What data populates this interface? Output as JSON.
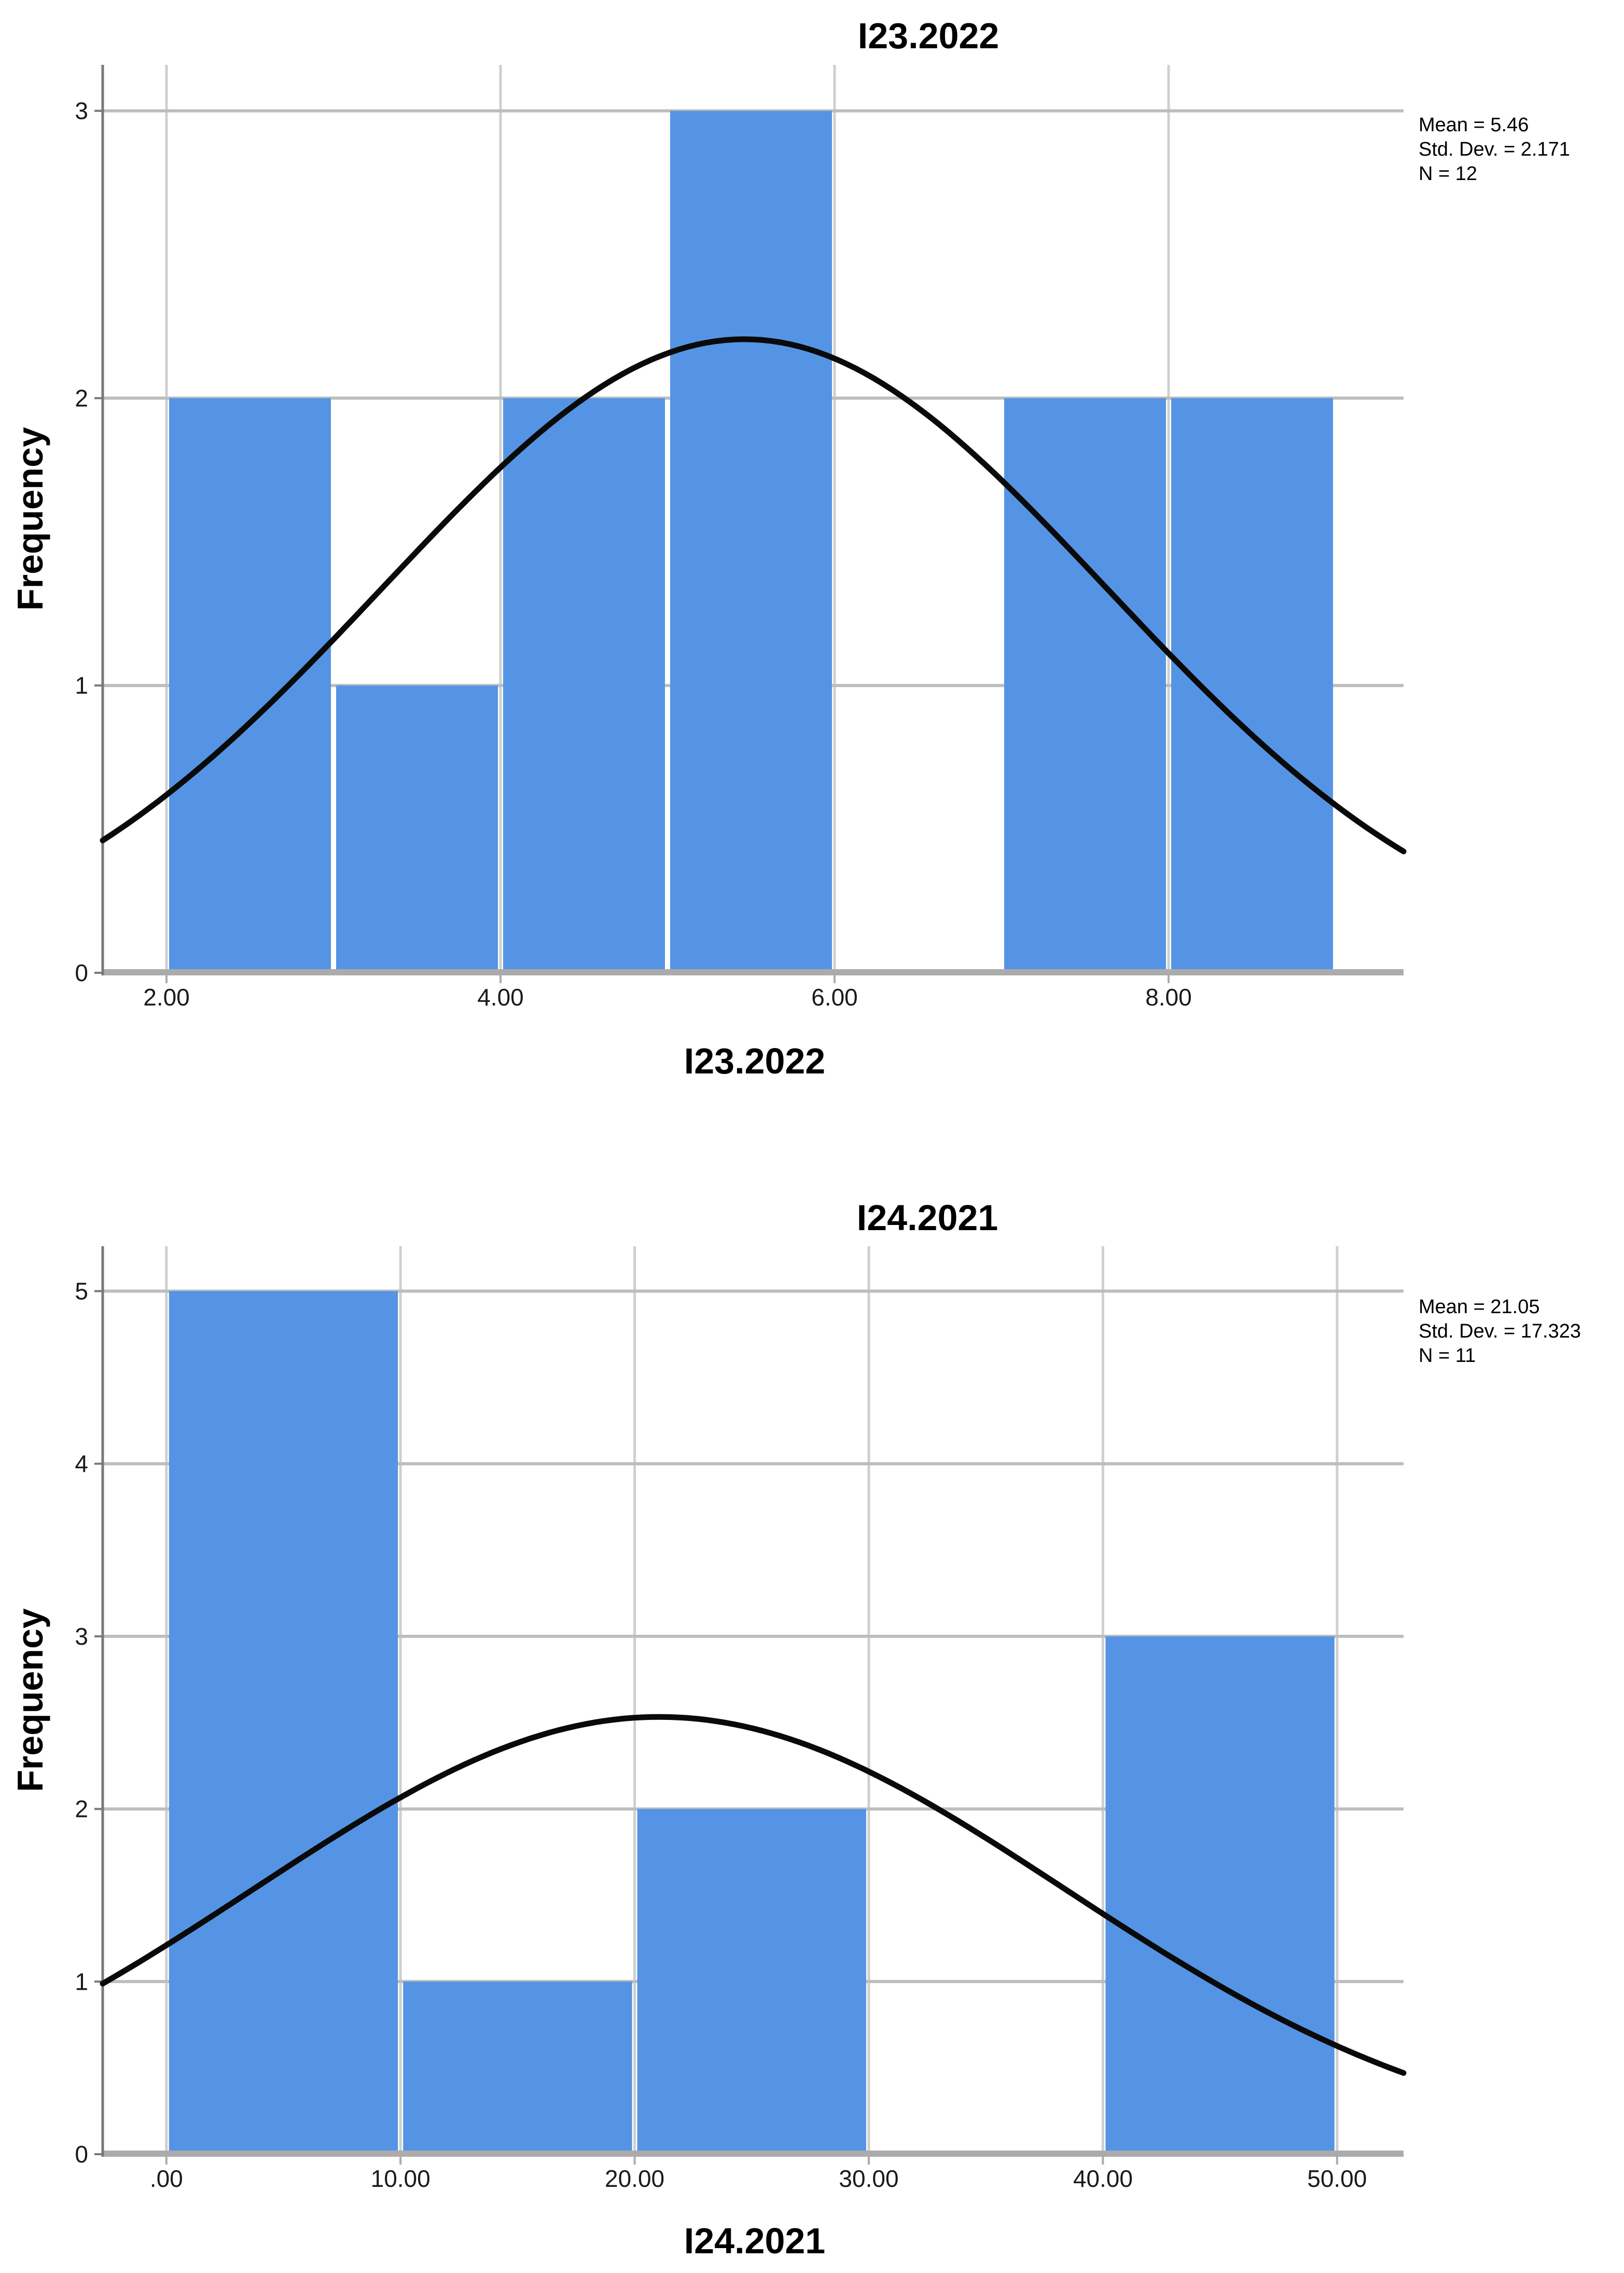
{
  "colors": {
    "bar": "#5594E5",
    "curve": "#0a0a0a",
    "grid_vertical": "#CFCFCF",
    "grid_horizontal": "#BDBDBD",
    "axis_line": "#787878",
    "axis_band": "#ABABAB",
    "text": "#000000"
  },
  "chart_data": [
    {
      "type": "bar",
      "subtype": "histogram-with-normal-curve",
      "title": "I23.2022",
      "xlabel": "I23.2022",
      "ylabel": "Frequency",
      "bin_start": 2,
      "bin_width": 1,
      "frequencies": [
        2,
        1,
        2,
        3,
        0,
        2,
        2
      ],
      "x_ticks": [
        {
          "v": 2,
          "label": "2.00"
        },
        {
          "v": 4,
          "label": "4.00"
        },
        {
          "v": 6,
          "label": "6.00"
        },
        {
          "v": 8,
          "label": "8.00"
        }
      ],
      "y_ticks": [
        {
          "v": 0,
          "label": "0"
        },
        {
          "v": 1,
          "label": "1"
        },
        {
          "v": 2,
          "label": "2"
        },
        {
          "v": 3,
          "label": "3"
        }
      ],
      "xlim": [
        1.618,
        9.407
      ],
      "ylim": [
        0,
        3.16
      ],
      "grid": true,
      "normal_curve": {
        "mean": 5.46,
        "std_dev": 2.171,
        "n": 12
      },
      "stats_lines": [
        "Mean = 5.46",
        "Std. Dev. = 2.171",
        "N = 12"
      ],
      "legend_position": "right-top"
    },
    {
      "type": "bar",
      "subtype": "histogram-with-normal-curve",
      "title": "I24.2021",
      "xlabel": "I24.2021",
      "ylabel": "Frequency",
      "bin_start": 0,
      "bin_width": 10,
      "frequencies": [
        5,
        1,
        2,
        0,
        3
      ],
      "x_ticks": [
        {
          "v": 0,
          "label": ".00"
        },
        {
          "v": 10,
          "label": "10.00"
        },
        {
          "v": 20,
          "label": "20.00"
        },
        {
          "v": 30,
          "label": "30.00"
        },
        {
          "v": 40,
          "label": "40.00"
        },
        {
          "v": 50,
          "label": "50.00"
        }
      ],
      "y_ticks": [
        {
          "v": 0,
          "label": "0"
        },
        {
          "v": 1,
          "label": "1"
        },
        {
          "v": 2,
          "label": "2"
        },
        {
          "v": 3,
          "label": "3"
        },
        {
          "v": 4,
          "label": "4"
        },
        {
          "v": 5,
          "label": "5"
        }
      ],
      "xlim": [
        -2.72,
        52.84
      ],
      "ylim": [
        0,
        5.26
      ],
      "grid": true,
      "normal_curve": {
        "mean": 21.05,
        "std_dev": 17.323,
        "n": 11
      },
      "stats_lines": [
        "Mean = 21.05",
        "Std. Dev. = 17.323",
        "N = 11"
      ],
      "legend_position": "right-top"
    }
  ]
}
